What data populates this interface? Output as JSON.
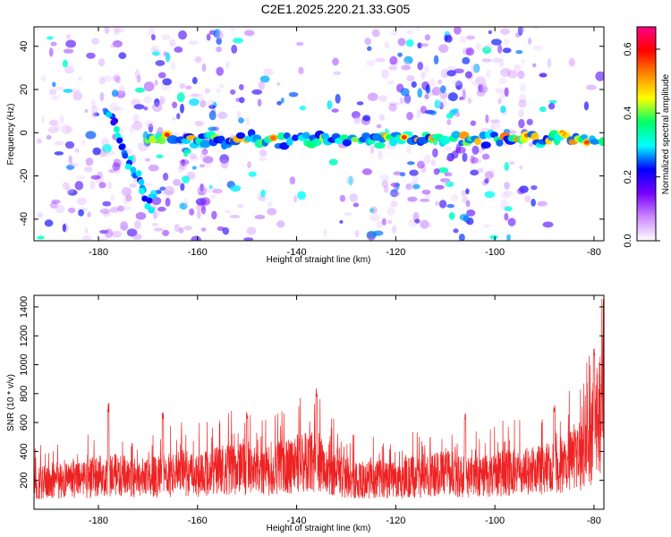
{
  "title": "C2E1.2025.220.21.33.G05",
  "chart_data": [
    {
      "type": "heatmap",
      "xlabel": "Height of straight line (km)",
      "ylabel": "Frequency (Hz)",
      "xlim": [
        -193,
        -78
      ],
      "ylim": [
        -50,
        49
      ],
      "xticks": [
        -180,
        -160,
        -140,
        -120,
        -100,
        -80
      ],
      "yticks": [
        -40,
        -20,
        0,
        20,
        40
      ],
      "colorbar": {
        "label": "Normalized spectral amplitude",
        "range": [
          0,
          0.67
        ],
        "ticks": [
          0.0,
          0.2,
          0.4,
          0.6
        ],
        "colors": [
          "#ffffff",
          "#cc88ff",
          "#7700ff",
          "#0000ff",
          "#00ffff",
          "#00ff66",
          "#ffff00",
          "#ff8800",
          "#ff0000",
          "#ff0088"
        ]
      },
      "features": {
        "horizontal_line": {
          "x_range": [
            -170,
            -78
          ],
          "frequency": -3
        },
        "diagonal_line": {
          "x_range": [
            -178,
            -169
          ],
          "frequency_range": [
            10,
            -38
          ]
        }
      }
    },
    {
      "type": "line",
      "xlabel": "Height of straight line (km)",
      "ylabel": "SNR (10 * v/v)",
      "xlim": [
        -193,
        -78
      ],
      "ylim": [
        0,
        1480
      ],
      "xticks": [
        -180,
        -160,
        -140,
        -120,
        -100,
        -80
      ],
      "yticks": [
        200,
        400,
        600,
        800,
        1000,
        1200,
        1400
      ],
      "color": "#ee2222",
      "series": [
        {
          "x": [
            -193,
            -190,
            -187,
            -184,
            -181,
            -178,
            -175,
            -172,
            -169,
            -166,
            -163,
            -160,
            -157,
            -154,
            -151,
            -148,
            -145,
            -142,
            -139,
            -136,
            -133,
            -130,
            -127,
            -124,
            -121,
            -118,
            -115,
            -112,
            -109,
            -106,
            -103,
            -100,
            -97,
            -94,
            -91,
            -88,
            -85,
            -82,
            -80,
            -79,
            -78
          ],
          "values": [
            170,
            190,
            210,
            200,
            220,
            240,
            230,
            210,
            220,
            230,
            250,
            240,
            260,
            270,
            280,
            260,
            270,
            300,
            320,
            330,
            280,
            220,
            200,
            210,
            200,
            220,
            230,
            240,
            250,
            230,
            220,
            240,
            250,
            260,
            280,
            300,
            330,
            380,
            480,
            650,
            800
          ],
          "peaks": [
            {
              "x": -178,
              "value": 740
            },
            {
              "x": -167,
              "value": 670
            },
            {
              "x": -150,
              "value": 690
            },
            {
              "x": -136,
              "value": 860
            },
            {
              "x": -106,
              "value": 670
            },
            {
              "x": -88,
              "value": 730
            },
            {
              "x": -80,
              "value": 1130
            },
            {
              "x": -78,
              "value": 1480
            }
          ]
        }
      ]
    }
  ]
}
